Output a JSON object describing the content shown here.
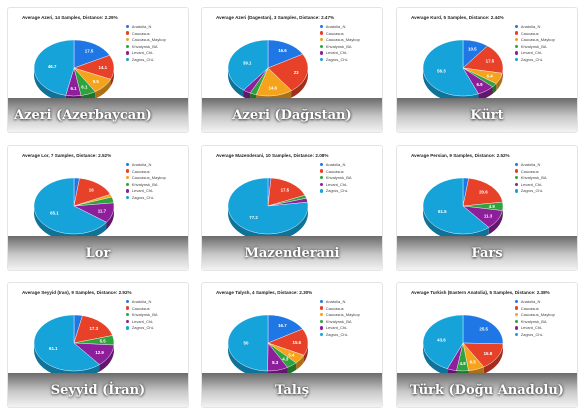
{
  "colors": {
    "Anatolia_N": "#1f77e5",
    "Caucasus": "#e8412a",
    "Caucasus_Maykop": "#f5a21c",
    "Khvalynsk_BA": "#2fa33e",
    "Levant_ChL": "#8e1f9b",
    "Zagros_ChL": "#16a3d9",
    "Other": "#e54aa0"
  },
  "source_url": "https://eurofinnic.wordpress.com/2020/05/18/distances/",
  "chart_data": [
    {
      "type": "pie",
      "title": "Average Azeri, 14 Samples, Distance: 2.29%",
      "caption": "Azeri (Azerbaycan)",
      "caption_align": "left",
      "legend": [
        "Anatolia_N",
        "Caucasus",
        "Caucasus_Maykop",
        "Khvalynsk_BA",
        "Levant_ChL",
        "Zagros_ChL"
      ],
      "slices": [
        {
          "label": "Anatolia_N",
          "value": 17.5
        },
        {
          "label": "Caucasus",
          "value": 14.1
        },
        {
          "label": "Caucasus_Maykop",
          "value": 9.5
        },
        {
          "label": "Khvalynsk_BA",
          "value": 6.1
        },
        {
          "label": "Levant_ChL",
          "value": 6.1
        },
        {
          "label": "Zagros_ChL",
          "value": 46.7
        }
      ]
    },
    {
      "type": "pie",
      "title": "Average Azeri (Dagestan), 3 Samples, Distance: 2.47%",
      "caption": "Azeri (Dağıstan)",
      "caption_align": "center",
      "legend": [
        "Anatolia_N",
        "Caucasus",
        "Caucasus_Maykop",
        "Khvalynsk_BA",
        "Levant_ChL",
        "Zagros_ChL"
      ],
      "slices": [
        {
          "label": "Anatolia_N",
          "value": 16.6
        },
        {
          "label": "Caucasus",
          "value": 23
        },
        {
          "label": "Caucasus_Maykop",
          "value": 14.6
        },
        {
          "label": "Khvalynsk_BA",
          "value": 2.6
        },
        {
          "label": "Levant_ChL",
          "value": 3.1
        },
        {
          "label": "Zagros_ChL",
          "value": 39.1
        }
      ]
    },
    {
      "type": "pie",
      "title": "Average Kurd, 5 Samples, Distance: 2.44%",
      "caption": "Kürt",
      "caption_align": "center",
      "legend": [
        "Anatolia_N",
        "Caucasus",
        "Caucasus_Maykop",
        "Khvalynsk_BA",
        "Levant_ChL",
        "Zagros_ChL"
      ],
      "slices": [
        {
          "label": "Anatolia_N",
          "value": 10.5
        },
        {
          "label": "Caucasus",
          "value": 17.5
        },
        {
          "label": "Caucasus_Maykop",
          "value": 6.4
        },
        {
          "label": "Khvalynsk_BA",
          "value": 2.4
        },
        {
          "label": "Levant_ChL",
          "value": 6.9
        },
        {
          "label": "Zagros_ChL",
          "value": 56.3
        }
      ]
    },
    {
      "type": "pie",
      "title": "Average Lor, 7 Samples, Distance: 2.52%",
      "caption": "Lor",
      "caption_align": "center",
      "legend": [
        "Anatolia_N",
        "Caucasus",
        "Caucasus_Maykop",
        "Khvalynsk_BA",
        "Levant_ChL",
        "Zagros_ChL"
      ],
      "slices": [
        {
          "label": "Anatolia_N",
          "value": 2.2
        },
        {
          "label": "Caucasus",
          "value": 16
        },
        {
          "label": "Caucasus_Maykop",
          "value": 1.6
        },
        {
          "label": "Khvalynsk_BA",
          "value": 3.4
        },
        {
          "label": "Levant_ChL",
          "value": 11.7
        },
        {
          "label": "Zagros_ChL",
          "value": 65.1
        }
      ]
    },
    {
      "type": "pie",
      "title": "Average Mazenderani, 10 Samples, Distance: 2.08%",
      "caption": "Mazenderani",
      "caption_align": "center",
      "legend": [
        "Anatolia_N",
        "Caucasus",
        "Khvalynsk_BA",
        "Levant_ChL",
        "Zagros_ChL"
      ],
      "slices": [
        {
          "label": "Anatolia_N",
          "value": 1.2
        },
        {
          "label": "Caucasus",
          "value": 17.5
        },
        {
          "label": "Khvalynsk_BA",
          "value": 1.8
        },
        {
          "label": "Levant_ChL",
          "value": 2.3
        },
        {
          "label": "Zagros_ChL",
          "value": 77.2
        }
      ]
    },
    {
      "type": "pie",
      "title": "Average Persian, 9 Samples, Distance: 2.52%",
      "caption": "Fars",
      "caption_align": "center",
      "legend": [
        "Anatolia_N",
        "Caucasus",
        "Khvalynsk_BA",
        "Levant_ChL",
        "Zagros_ChL"
      ],
      "slices": [
        {
          "label": "Anatolia_N",
          "value": 2.3
        },
        {
          "label": "Caucasus",
          "value": 20.6
        },
        {
          "label": "Khvalynsk_BA",
          "value": 4.9
        },
        {
          "label": "Levant_ChL",
          "value": 11.3
        },
        {
          "label": "Zagros_ChL",
          "value": 61.5
        }
      ]
    },
    {
      "type": "pie",
      "title": "Average Seyyid (Iran), 9 Samples, Distance: 2.92%",
      "caption": "Seyyid (İran)",
      "caption_align": "center",
      "legend": [
        "Anatolia_N",
        "Caucasus",
        "Khvalynsk_BA",
        "Levant_ChL",
        "Zagros_ChL"
      ],
      "slices": [
        {
          "label": "Anatolia_N",
          "value": 3.4
        },
        {
          "label": "Caucasus",
          "value": 17.3
        },
        {
          "label": "Khvalynsk_BA",
          "value": 5.5
        },
        {
          "label": "Levant_ChL",
          "value": 12.9
        },
        {
          "label": "Zagros_ChL",
          "value": 61.1
        }
      ]
    },
    {
      "type": "pie",
      "title": "Average Talysh, 4 Samples, Distance: 2.30%",
      "caption": "Talış",
      "caption_align": "center",
      "legend": [
        "Anatolia_N",
        "Caucasus",
        "Caucasus_Maykop",
        "Khvalynsk_BA",
        "Levant_ChL",
        "Zagros_ChL"
      ],
      "slices": [
        {
          "label": "Anatolia_N",
          "value": 16.7
        },
        {
          "label": "Caucasus",
          "value": 15.6
        },
        {
          "label": "Caucasus_Maykop",
          "value": 5.4
        },
        {
          "label": "Khvalynsk_BA",
          "value": 4.3
        },
        {
          "label": "Levant_ChL",
          "value": 8.3
        },
        {
          "label": "Zagros_ChL",
          "value": 50
        }
      ]
    },
    {
      "type": "pie",
      "title": "Average Turkish (Eastern Anatolia), 5 Samples, Distance: 2.38%",
      "caption": "Türk (Doğu Anadolu)",
      "caption_align": "center",
      "legend": [
        "Anatolia_N",
        "Caucasus",
        "Caucasus_Maykop",
        "Khvalynsk_BA",
        "Levant_ChL",
        "Zagros_ChL"
      ],
      "slices": [
        {
          "label": "Anatolia_N",
          "value": 25.5
        },
        {
          "label": "Caucasus",
          "value": 15.8
        },
        {
          "label": "Caucasus_Maykop",
          "value": 6.5
        },
        {
          "label": "Khvalynsk_BA",
          "value": 4.8
        },
        {
          "label": "Levant_ChL",
          "value": 3.8
        },
        {
          "label": "Zagros_ChL",
          "value": 43.6
        }
      ]
    }
  ]
}
